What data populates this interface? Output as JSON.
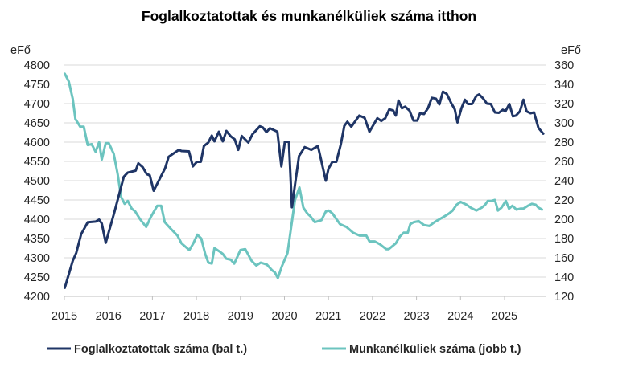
{
  "chart_data": {
    "type": "line",
    "title": "Foglalkoztatottak és munkanélküliek száma itthon",
    "y_left_unit": "eFő",
    "y_right_unit": "eFő",
    "ylim_left": [
      4200,
      4800
    ],
    "ylim_right": [
      120,
      360
    ],
    "y_left_ticks": [
      "4200",
      "4250",
      "4300",
      "4350",
      "4400",
      "4450",
      "4500",
      "4550",
      "4600",
      "4650",
      "4700",
      "4750",
      "4800"
    ],
    "y_right_ticks": [
      "120",
      "140",
      "160",
      "180",
      "200",
      "220",
      "240",
      "260",
      "280",
      "300",
      "320",
      "340",
      "360"
    ],
    "x_ticks": [
      "2015",
      "2016",
      "2017",
      "2018",
      "2019",
      "2020",
      "2021",
      "2022",
      "2023",
      "2024",
      "2025"
    ],
    "xlim": [
      2015,
      2026
    ],
    "grid": true,
    "legend_position": "bottom",
    "colors": {
      "employed": "#1f3566",
      "unemployed": "#6cc4bf"
    },
    "series": [
      {
        "name": "Foglalkoztatottak száma (bal t.)",
        "axis": "left",
        "points": [
          [
            2015.01,
            4222
          ],
          [
            2015.19,
            4292
          ],
          [
            2015.27,
            4313
          ],
          [
            2015.38,
            4361
          ],
          [
            2015.53,
            4392
          ],
          [
            2015.71,
            4394
          ],
          [
            2015.79,
            4399
          ],
          [
            2015.85,
            4389
          ],
          [
            2015.94,
            4339
          ],
          [
            2016.14,
            4420
          ],
          [
            2016.35,
            4510
          ],
          [
            2016.44,
            4521
          ],
          [
            2016.62,
            4526
          ],
          [
            2016.68,
            4545
          ],
          [
            2016.78,
            4535
          ],
          [
            2016.87,
            4517
          ],
          [
            2016.94,
            4514
          ],
          [
            2017.03,
            4474
          ],
          [
            2017.29,
            4533
          ],
          [
            2017.37,
            4562
          ],
          [
            2017.6,
            4580
          ],
          [
            2017.66,
            4577
          ],
          [
            2017.83,
            4576
          ],
          [
            2017.92,
            4537
          ],
          [
            2018.01,
            4549
          ],
          [
            2018.1,
            4549
          ],
          [
            2018.17,
            4590
          ],
          [
            2018.27,
            4599
          ],
          [
            2018.35,
            4617
          ],
          [
            2018.41,
            4602
          ],
          [
            2018.51,
            4627
          ],
          [
            2018.6,
            4602
          ],
          [
            2018.68,
            4629
          ],
          [
            2018.78,
            4615
          ],
          [
            2018.87,
            4607
          ],
          [
            2018.95,
            4580
          ],
          [
            2019.03,
            4616
          ],
          [
            2019.18,
            4599
          ],
          [
            2019.27,
            4620
          ],
          [
            2019.44,
            4641
          ],
          [
            2019.51,
            4638
          ],
          [
            2019.59,
            4626
          ],
          [
            2019.67,
            4636
          ],
          [
            2019.84,
            4627
          ],
          [
            2019.93,
            4537
          ],
          [
            2020.01,
            4601
          ],
          [
            2020.1,
            4601
          ],
          [
            2020.17,
            4431
          ],
          [
            2020.24,
            4490
          ],
          [
            2020.33,
            4564
          ],
          [
            2020.46,
            4587
          ],
          [
            2020.61,
            4580
          ],
          [
            2020.76,
            4590
          ],
          [
            2020.94,
            4500
          ],
          [
            2021.0,
            4531
          ],
          [
            2021.09,
            4549
          ],
          [
            2021.18,
            4549
          ],
          [
            2021.28,
            4594
          ],
          [
            2021.36,
            4642
          ],
          [
            2021.43,
            4653
          ],
          [
            2021.52,
            4640
          ],
          [
            2021.7,
            4669
          ],
          [
            2021.82,
            4663
          ],
          [
            2021.93,
            4627
          ],
          [
            2022.11,
            4662
          ],
          [
            2022.2,
            4655
          ],
          [
            2022.29,
            4662
          ],
          [
            2022.38,
            4685
          ],
          [
            2022.47,
            4682
          ],
          [
            2022.53,
            4669
          ],
          [
            2022.59,
            4708
          ],
          [
            2022.67,
            4688
          ],
          [
            2022.74,
            4692
          ],
          [
            2022.84,
            4682
          ],
          [
            2022.93,
            4656
          ],
          [
            2023.02,
            4656
          ],
          [
            2023.08,
            4675
          ],
          [
            2023.17,
            4673
          ],
          [
            2023.26,
            4688
          ],
          [
            2023.35,
            4715
          ],
          [
            2023.44,
            4713
          ],
          [
            2023.52,
            4698
          ],
          [
            2023.6,
            4731
          ],
          [
            2023.69,
            4725
          ],
          [
            2023.79,
            4701
          ],
          [
            2023.87,
            4685
          ],
          [
            2023.93,
            4651
          ],
          [
            2024.02,
            4688
          ],
          [
            2024.1,
            4710
          ],
          [
            2024.17,
            4699
          ],
          [
            2024.26,
            4699
          ],
          [
            2024.36,
            4720
          ],
          [
            2024.42,
            4724
          ],
          [
            2024.51,
            4714
          ],
          [
            2024.6,
            4700
          ],
          [
            2024.69,
            4699
          ],
          [
            2024.78,
            4677
          ],
          [
            2024.87,
            4676
          ],
          [
            2024.96,
            4684
          ],
          [
            2025.02,
            4680
          ],
          [
            2025.11,
            4699
          ],
          [
            2025.19,
            4667
          ],
          [
            2025.26,
            4669
          ],
          [
            2025.35,
            4680
          ],
          [
            2025.43,
            4710
          ],
          [
            2025.5,
            4680
          ],
          [
            2025.59,
            4675
          ],
          [
            2025.67,
            4677
          ],
          [
            2025.77,
            4637
          ],
          [
            2025.88,
            4622
          ]
        ]
      },
      {
        "name": "Munkanélküliek száma (jobb t.)",
        "axis": "right",
        "points": [
          [
            2015.01,
            351
          ],
          [
            2015.1,
            343
          ],
          [
            2015.19,
            325
          ],
          [
            2015.25,
            304
          ],
          [
            2015.36,
            296
          ],
          [
            2015.44,
            296
          ],
          [
            2015.53,
            277
          ],
          [
            2015.62,
            278
          ],
          [
            2015.71,
            270
          ],
          [
            2015.79,
            280
          ],
          [
            2015.85,
            262
          ],
          [
            2015.94,
            279
          ],
          [
            2016.01,
            279
          ],
          [
            2016.12,
            268
          ],
          [
            2016.21,
            247
          ],
          [
            2016.29,
            223
          ],
          [
            2016.37,
            216
          ],
          [
            2016.44,
            219
          ],
          [
            2016.53,
            211
          ],
          [
            2016.61,
            208
          ],
          [
            2016.72,
            200
          ],
          [
            2016.86,
            192
          ],
          [
            2016.96,
            202
          ],
          [
            2017.11,
            214
          ],
          [
            2017.2,
            214
          ],
          [
            2017.28,
            197
          ],
          [
            2017.42,
            190
          ],
          [
            2017.57,
            183
          ],
          [
            2017.66,
            175
          ],
          [
            2017.84,
            168
          ],
          [
            2017.93,
            175
          ],
          [
            2018.02,
            184
          ],
          [
            2018.11,
            180
          ],
          [
            2018.2,
            164
          ],
          [
            2018.27,
            155
          ],
          [
            2018.35,
            154
          ],
          [
            2018.41,
            170
          ],
          [
            2018.51,
            167
          ],
          [
            2018.6,
            164
          ],
          [
            2018.68,
            159
          ],
          [
            2018.78,
            158
          ],
          [
            2018.86,
            154
          ],
          [
            2019.0,
            168
          ],
          [
            2019.11,
            169
          ],
          [
            2019.25,
            157
          ],
          [
            2019.36,
            152
          ],
          [
            2019.46,
            155
          ],
          [
            2019.6,
            153
          ],
          [
            2019.72,
            147
          ],
          [
            2019.78,
            145
          ],
          [
            2019.85,
            139
          ],
          [
            2019.94,
            151
          ],
          [
            2020.07,
            165
          ],
          [
            2020.15,
            191
          ],
          [
            2020.24,
            220
          ],
          [
            2020.34,
            233
          ],
          [
            2020.43,
            212
          ],
          [
            2020.52,
            206
          ],
          [
            2020.59,
            203
          ],
          [
            2020.69,
            197
          ],
          [
            2020.84,
            199
          ],
          [
            2020.94,
            208
          ],
          [
            2021.01,
            209
          ],
          [
            2021.09,
            206
          ],
          [
            2021.26,
            195
          ],
          [
            2021.41,
            192
          ],
          [
            2021.56,
            186
          ],
          [
            2021.71,
            183
          ],
          [
            2021.86,
            183
          ],
          [
            2021.93,
            177
          ],
          [
            2022.05,
            177
          ],
          [
            2022.17,
            174
          ],
          [
            2022.31,
            169
          ],
          [
            2022.37,
            169
          ],
          [
            2022.53,
            175
          ],
          [
            2022.62,
            182
          ],
          [
            2022.71,
            186
          ],
          [
            2022.8,
            186
          ],
          [
            2022.86,
            195
          ],
          [
            2022.94,
            197
          ],
          [
            2023.05,
            198
          ],
          [
            2023.17,
            194
          ],
          [
            2023.29,
            193
          ],
          [
            2023.41,
            197
          ],
          [
            2023.6,
            202
          ],
          [
            2023.74,
            206
          ],
          [
            2023.82,
            209
          ],
          [
            2023.91,
            215
          ],
          [
            2024.0,
            218
          ],
          [
            2024.14,
            215
          ],
          [
            2024.23,
            212
          ],
          [
            2024.36,
            209
          ],
          [
            2024.48,
            212
          ],
          [
            2024.56,
            215
          ],
          [
            2024.62,
            219
          ],
          [
            2024.7,
            219
          ],
          [
            2024.78,
            220
          ],
          [
            2024.85,
            209
          ],
          [
            2024.93,
            212
          ],
          [
            2025.03,
            219
          ],
          [
            2025.1,
            211
          ],
          [
            2025.18,
            214
          ],
          [
            2025.27,
            210
          ],
          [
            2025.36,
            211
          ],
          [
            2025.43,
            211
          ],
          [
            2025.53,
            214
          ],
          [
            2025.62,
            216
          ],
          [
            2025.71,
            215
          ],
          [
            2025.77,
            212
          ],
          [
            2025.85,
            210
          ]
        ]
      }
    ]
  }
}
